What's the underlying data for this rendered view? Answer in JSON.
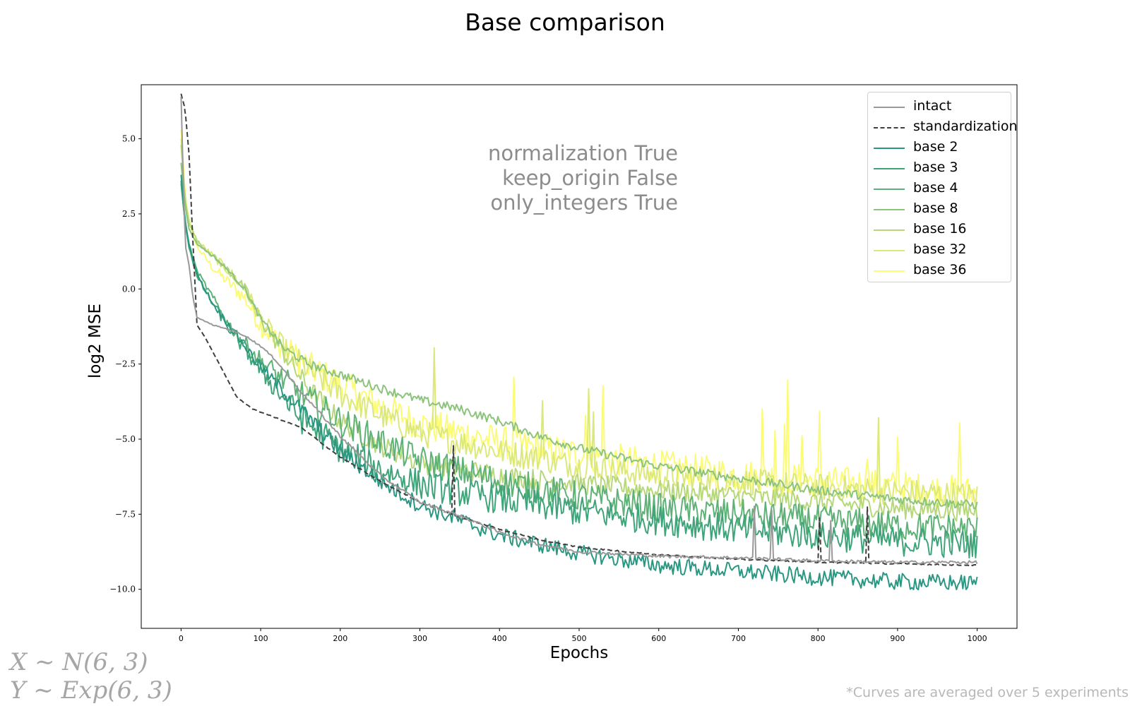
{
  "chart_data": {
    "type": "line",
    "title": "Base comparison",
    "xlabel": "Epochs",
    "ylabel": "log2 MSE",
    "xlim": [
      -50,
      1050
    ],
    "ylim": [
      -11.3,
      6.8
    ],
    "xticks": [
      0,
      100,
      200,
      300,
      400,
      500,
      600,
      700,
      800,
      900,
      1000
    ],
    "yticks": [
      5.0,
      2.5,
      0.0,
      -2.5,
      -5.0,
      -7.5,
      -10.0
    ],
    "ytick_labels": [
      "5.0",
      "2.5",
      "0.0",
      "−2.5",
      "−5.0",
      "−7.5",
      "−10.0"
    ],
    "legend_position": "top-right",
    "grid": false,
    "series": [
      {
        "name": "intact",
        "color": "#999999",
        "style": "solid",
        "noise": 0.05,
        "spikes": 4,
        "points": [
          [
            0,
            6.4
          ],
          [
            5,
            1.5
          ],
          [
            10,
            0.8
          ],
          [
            15,
            -0.3
          ],
          [
            20,
            -0.95
          ],
          [
            40,
            -1.2
          ],
          [
            60,
            -1.35
          ],
          [
            80,
            -1.55
          ],
          [
            100,
            -1.9
          ],
          [
            120,
            -2.4
          ],
          [
            150,
            -3.4
          ],
          [
            200,
            -4.9
          ],
          [
            250,
            -6.2
          ],
          [
            300,
            -7.1
          ],
          [
            350,
            -7.55
          ],
          [
            400,
            -8.1
          ],
          [
            450,
            -8.5
          ],
          [
            500,
            -8.75
          ],
          [
            600,
            -8.9
          ],
          [
            700,
            -8.95
          ],
          [
            800,
            -9.05
          ],
          [
            900,
            -9.1
          ],
          [
            1000,
            -9.1
          ]
        ]
      },
      {
        "name": "standardization",
        "color": "#404040",
        "style": "dashed",
        "noise": 0.02,
        "spikes": 3,
        "points": [
          [
            0,
            6.5
          ],
          [
            5,
            6.0
          ],
          [
            10,
            4.5
          ],
          [
            15,
            1.5
          ],
          [
            20,
            -1.2
          ],
          [
            30,
            -1.6
          ],
          [
            50,
            -2.6
          ],
          [
            70,
            -3.6
          ],
          [
            90,
            -4.0
          ],
          [
            120,
            -4.3
          ],
          [
            150,
            -4.6
          ],
          [
            180,
            -5.2
          ],
          [
            200,
            -5.6
          ],
          [
            250,
            -6.4
          ],
          [
            300,
            -7.1
          ],
          [
            350,
            -7.6
          ],
          [
            400,
            -8.0
          ],
          [
            450,
            -8.35
          ],
          [
            500,
            -8.6
          ],
          [
            600,
            -8.85
          ],
          [
            700,
            -9.0
          ],
          [
            800,
            -9.1
          ],
          [
            900,
            -9.15
          ],
          [
            1000,
            -9.2
          ]
        ]
      },
      {
        "name": "base 2",
        "color": "#2a9782",
        "style": "solid",
        "noise": 0.28,
        "spikes": 0,
        "points": [
          [
            0,
            3.8
          ],
          [
            5,
            2.3
          ],
          [
            10,
            1.5
          ],
          [
            20,
            0.5
          ],
          [
            40,
            -0.5
          ],
          [
            60,
            -1.2
          ],
          [
            100,
            -2.6
          ],
          [
            150,
            -4.0
          ],
          [
            200,
            -5.4
          ],
          [
            250,
            -6.4
          ],
          [
            300,
            -7.2
          ],
          [
            400,
            -8.2
          ],
          [
            500,
            -8.8
          ],
          [
            600,
            -9.2
          ],
          [
            700,
            -9.4
          ],
          [
            800,
            -9.6
          ],
          [
            900,
            -9.75
          ],
          [
            1000,
            -9.8
          ]
        ]
      },
      {
        "name": "base 3",
        "color": "#3fa47a",
        "style": "solid",
        "noise": 0.5,
        "spikes": 0,
        "points": [
          [
            0,
            3.6
          ],
          [
            5,
            2.2
          ],
          [
            10,
            1.4
          ],
          [
            20,
            0.4
          ],
          [
            40,
            -0.5
          ],
          [
            60,
            -1.3
          ],
          [
            100,
            -2.7
          ],
          [
            150,
            -4.3
          ],
          [
            200,
            -5.3
          ],
          [
            250,
            -6.0
          ],
          [
            300,
            -6.5
          ],
          [
            400,
            -7.0
          ],
          [
            500,
            -7.4
          ],
          [
            600,
            -7.7
          ],
          [
            700,
            -8.0
          ],
          [
            800,
            -8.2
          ],
          [
            900,
            -8.4
          ],
          [
            1000,
            -8.5
          ]
        ]
      },
      {
        "name": "base 4",
        "color": "#5fb277",
        "style": "solid",
        "noise": 0.5,
        "spikes": 0,
        "points": [
          [
            0,
            3.5
          ],
          [
            5,
            2.2
          ],
          [
            10,
            1.5
          ],
          [
            20,
            0.6
          ],
          [
            40,
            -0.3
          ],
          [
            60,
            -1.2
          ],
          [
            100,
            -2.4
          ],
          [
            150,
            -3.5
          ],
          [
            200,
            -4.4
          ],
          [
            250,
            -5.1
          ],
          [
            300,
            -5.7
          ],
          [
            400,
            -6.4
          ],
          [
            500,
            -6.9
          ],
          [
            600,
            -7.3
          ],
          [
            700,
            -7.5
          ],
          [
            800,
            -7.7
          ],
          [
            900,
            -7.9
          ],
          [
            1000,
            -8.0
          ]
        ]
      },
      {
        "name": "base 8",
        "color": "#8cc47c",
        "style": "solid",
        "noise": 0.15,
        "spikes": 0,
        "points": [
          [
            0,
            4.2
          ],
          [
            5,
            2.8
          ],
          [
            10,
            2.0
          ],
          [
            20,
            1.5
          ],
          [
            40,
            1.1
          ],
          [
            60,
            0.6
          ],
          [
            80,
            0.0
          ],
          [
            100,
            -1.0
          ],
          [
            130,
            -2.0
          ],
          [
            160,
            -2.5
          ],
          [
            200,
            -2.85
          ],
          [
            250,
            -3.3
          ],
          [
            300,
            -3.7
          ],
          [
            350,
            -4.0
          ],
          [
            400,
            -4.4
          ],
          [
            450,
            -4.9
          ],
          [
            500,
            -5.3
          ],
          [
            550,
            -5.6
          ],
          [
            600,
            -5.9
          ],
          [
            700,
            -6.3
          ],
          [
            800,
            -6.7
          ],
          [
            900,
            -7.0
          ],
          [
            1000,
            -7.2
          ]
        ]
      },
      {
        "name": "base 16",
        "color": "#b6d87a",
        "style": "solid",
        "noise": 0.35,
        "spikes": 0,
        "points": [
          [
            0,
            4.8
          ],
          [
            5,
            3.0
          ],
          [
            10,
            2.2
          ],
          [
            20,
            1.6
          ],
          [
            40,
            1.1
          ],
          [
            60,
            0.6
          ],
          [
            80,
            0.0
          ],
          [
            100,
            -1.0
          ],
          [
            130,
            -2.2
          ],
          [
            160,
            -3.3
          ],
          [
            200,
            -4.4
          ],
          [
            250,
            -5.2
          ],
          [
            300,
            -5.8
          ],
          [
            400,
            -6.2
          ],
          [
            500,
            -6.5
          ],
          [
            600,
            -6.7
          ],
          [
            700,
            -6.9
          ],
          [
            800,
            -7.1
          ],
          [
            900,
            -7.3
          ],
          [
            1000,
            -7.4
          ]
        ]
      },
      {
        "name": "base 32",
        "color": "#dce97a",
        "style": "solid",
        "noise": 0.45,
        "spikes": 5,
        "points": [
          [
            0,
            5.0
          ],
          [
            5,
            3.0
          ],
          [
            10,
            2.3
          ],
          [
            20,
            1.6
          ],
          [
            40,
            1.1
          ],
          [
            60,
            0.6
          ],
          [
            80,
            0.0
          ],
          [
            100,
            -1.0
          ],
          [
            130,
            -2.0
          ],
          [
            160,
            -2.7
          ],
          [
            200,
            -3.5
          ],
          [
            250,
            -4.2
          ],
          [
            300,
            -4.8
          ],
          [
            400,
            -5.4
          ],
          [
            500,
            -5.9
          ],
          [
            600,
            -6.2
          ],
          [
            700,
            -6.4
          ],
          [
            800,
            -6.6
          ],
          [
            900,
            -6.75
          ],
          [
            1000,
            -6.9
          ]
        ]
      },
      {
        "name": "base 36",
        "color": "#fbfb76",
        "style": "solid",
        "noise": 0.55,
        "spikes": 12,
        "points": [
          [
            0,
            5.3
          ],
          [
            5,
            3.2
          ],
          [
            10,
            2.2
          ],
          [
            20,
            1.4
          ],
          [
            40,
            0.7
          ],
          [
            60,
            0.2
          ],
          [
            80,
            -0.3
          ],
          [
            100,
            -1.2
          ],
          [
            130,
            -2.0
          ],
          [
            160,
            -2.6
          ],
          [
            200,
            -3.2
          ],
          [
            250,
            -3.9
          ],
          [
            300,
            -4.5
          ],
          [
            400,
            -5.1
          ],
          [
            500,
            -5.5
          ],
          [
            600,
            -5.9
          ],
          [
            700,
            -6.2
          ],
          [
            800,
            -6.4
          ],
          [
            900,
            -6.6
          ],
          [
            1000,
            -6.8
          ]
        ]
      }
    ]
  },
  "annotation": {
    "line1": "normalization True",
    "line2": "keep_origin False",
    "line3": "only_integers True"
  },
  "distributions": {
    "x": "X ∼ N(6, 3)",
    "y": "Y ∼ Exp(6, 3)"
  },
  "footnote": "*Curves are averaged over 5 experiments"
}
